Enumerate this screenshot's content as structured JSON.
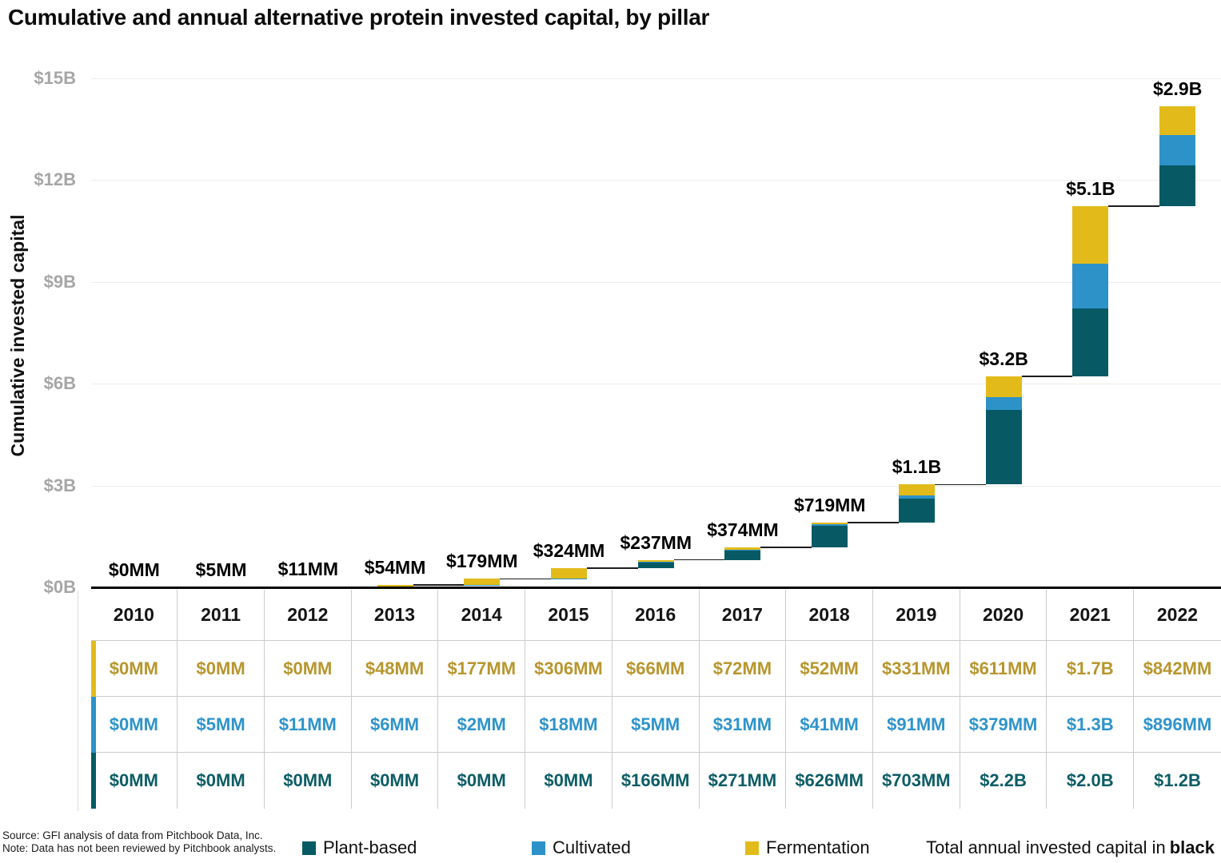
{
  "title": "Cumulative and annual alternative protein invested capital, by pillar",
  "y_axis": {
    "title": "Cumulative invested capital",
    "ticks": [
      "$0B",
      "$3B",
      "$6B",
      "$9B",
      "$12B",
      "$15B"
    ]
  },
  "chart_data": {
    "type": "waterfall-stacked-bar",
    "title": "Cumulative and annual alternative protein invested capital, by pillar",
    "ylabel": "Cumulative invested capital",
    "ylim_billions": [
      0,
      15
    ],
    "y_tick_step_billions": 3,
    "grid": "horizontal",
    "categories": [
      "2010",
      "2011",
      "2012",
      "2013",
      "2014",
      "2015",
      "2016",
      "2017",
      "2018",
      "2019",
      "2020",
      "2021",
      "2022"
    ],
    "series": [
      {
        "name": "Plant-based",
        "color": "#075a64",
        "values_mm": [
          0,
          0,
          0,
          0,
          0,
          0,
          166,
          271,
          626,
          703,
          2200,
          2000,
          1200
        ]
      },
      {
        "name": "Cultivated",
        "color": "#2d92c8",
        "values_mm": [
          0,
          5,
          11,
          6,
          2,
          18,
          5,
          31,
          41,
          91,
          379,
          1300,
          896
        ]
      },
      {
        "name": "Fermentation",
        "color": "#e2bb1b",
        "values_mm": [
          0,
          0,
          0,
          48,
          177,
          306,
          66,
          72,
          52,
          331,
          611,
          1700,
          842
        ]
      }
    ],
    "annual_total_labels": [
      "$0MM",
      "$5MM",
      "$11MM",
      "$54MM",
      "$179MM",
      "$324MM",
      "$237MM",
      "$374MM",
      "$719MM",
      "$1.1B",
      "$3.2B",
      "$5.1B",
      "$2.9B"
    ],
    "legend_position": "bottom"
  },
  "table": {
    "year_row": [
      "2010",
      "2011",
      "2012",
      "2013",
      "2014",
      "2015",
      "2016",
      "2017",
      "2018",
      "2019",
      "2020",
      "2021",
      "2022"
    ],
    "rows": [
      {
        "name": "Fermentation",
        "stripe_color": "#e2bb1b",
        "text_color": "#b7962e",
        "values": [
          "$0MM",
          "$0MM",
          "$0MM",
          "$48MM",
          "$177MM",
          "$306MM",
          "$66MM",
          "$72MM",
          "$52MM",
          "$331MM",
          "$611MM",
          "$1.7B",
          "$842MM"
        ]
      },
      {
        "name": "Cultivated",
        "stripe_color": "#2d92c8",
        "text_color": "#2e94ca",
        "values": [
          "$0MM",
          "$5MM",
          "$11MM",
          "$6MM",
          "$2MM",
          "$18MM",
          "$5MM",
          "$31MM",
          "$41MM",
          "$91MM",
          "$379MM",
          "$1.3B",
          "$896MM"
        ]
      },
      {
        "name": "Plant-based",
        "stripe_color": "#075a64",
        "text_color": "#0d5d66",
        "values": [
          "$0MM",
          "$0MM",
          "$0MM",
          "$0MM",
          "$0MM",
          "$0MM",
          "$166MM",
          "$271MM",
          "$626MM",
          "$703MM",
          "$2.2B",
          "$2.0B",
          "$1.2B"
        ]
      }
    ]
  },
  "legend": {
    "items": [
      {
        "label": "Plant-based",
        "color": "#075a64"
      },
      {
        "label": "Cultivated",
        "color": "#2d92c8"
      },
      {
        "label": "Fermentation",
        "color": "#e2bb1b"
      }
    ],
    "note_prefix": "Total annual invested capital in",
    "note_bold": "black"
  },
  "source": {
    "line1": "Source: GFI analysis of data from Pitchbook Data, Inc.",
    "line2": "Note: Data has not been reviewed by Pitchbook analysts."
  }
}
